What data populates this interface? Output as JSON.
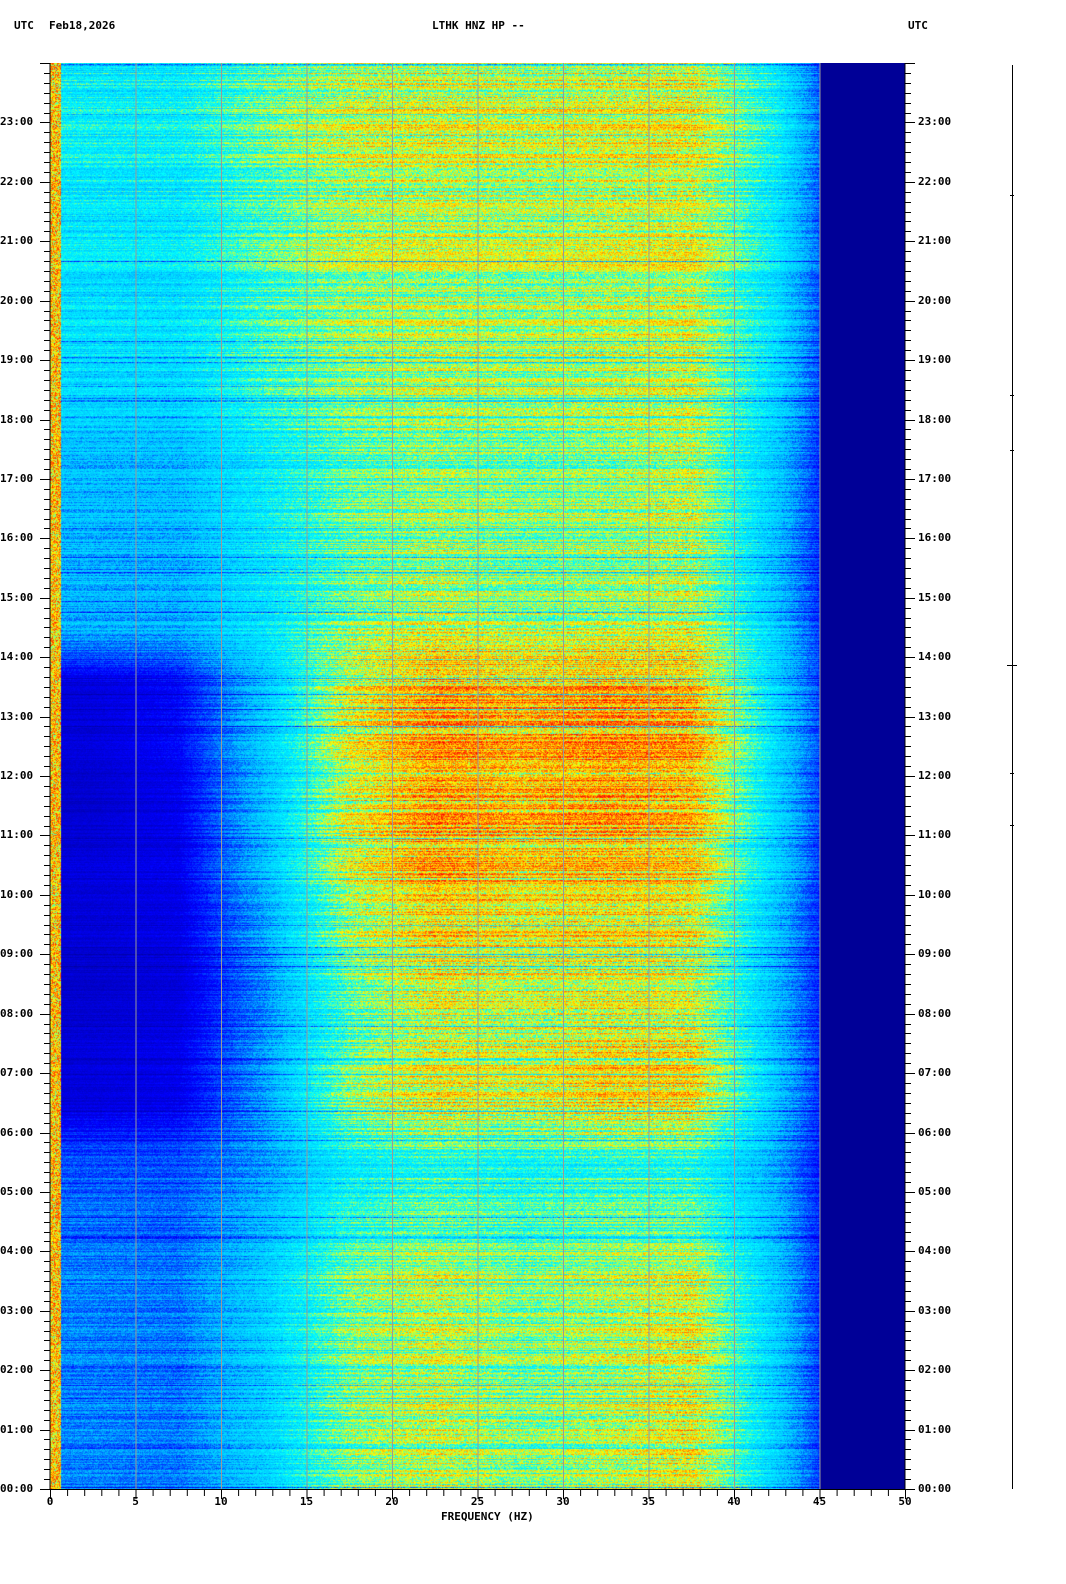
{
  "header": {
    "left_tz": "UTC",
    "date": "Feb18,2026",
    "station": "LTHK HNZ HP --",
    "right_tz": "UTC"
  },
  "chart_data": {
    "type": "heatmap",
    "title": "LTHK HNZ HP --",
    "xlabel": "FREQUENCY (HZ)",
    "ylabel": "",
    "xlim": [
      0,
      50
    ],
    "ylim_hours": [
      0,
      24
    ],
    "x_ticks": [
      "0",
      "5",
      "10",
      "15",
      "20",
      "25",
      "30",
      "35",
      "40",
      "45",
      "50"
    ],
    "y_ticks": [
      "00:00",
      "01:00",
      "02:00",
      "03:00",
      "04:00",
      "05:00",
      "06:00",
      "07:00",
      "08:00",
      "09:00",
      "10:00",
      "11:00",
      "12:00",
      "13:00",
      "14:00",
      "15:00",
      "16:00",
      "17:00",
      "18:00",
      "19:00",
      "20:00",
      "21:00",
      "22:00",
      "23:00"
    ],
    "grid": true,
    "colormap": [
      "#000080",
      "#0000ff",
      "#00c0ff",
      "#00ffff",
      "#ffff00",
      "#ff8000",
      "#ff0000"
    ],
    "frequency_bands_hz": [
      "0-5",
      "5-10",
      "10-15",
      "15-20",
      "20-25",
      "25-30",
      "30-35",
      "35-40",
      "40-45",
      "45-50"
    ],
    "relative_power_by_hour": [
      [
        0.28,
        0.27,
        0.38,
        0.58,
        0.64,
        0.58,
        0.62,
        0.68,
        0.38,
        0.05
      ],
      [
        0.28,
        0.27,
        0.38,
        0.58,
        0.64,
        0.58,
        0.62,
        0.68,
        0.38,
        0.05
      ],
      [
        0.28,
        0.27,
        0.38,
        0.58,
        0.64,
        0.58,
        0.62,
        0.68,
        0.38,
        0.05
      ],
      [
        0.28,
        0.27,
        0.38,
        0.58,
        0.64,
        0.58,
        0.62,
        0.66,
        0.36,
        0.05
      ],
      [
        0.26,
        0.25,
        0.34,
        0.5,
        0.55,
        0.52,
        0.55,
        0.55,
        0.34,
        0.05
      ],
      [
        0.24,
        0.24,
        0.3,
        0.45,
        0.5,
        0.48,
        0.5,
        0.5,
        0.32,
        0.05
      ],
      [
        0.12,
        0.14,
        0.3,
        0.6,
        0.7,
        0.66,
        0.72,
        0.72,
        0.36,
        0.05
      ],
      [
        0.12,
        0.14,
        0.3,
        0.55,
        0.66,
        0.64,
        0.7,
        0.7,
        0.36,
        0.05
      ],
      [
        0.1,
        0.12,
        0.28,
        0.55,
        0.68,
        0.64,
        0.66,
        0.64,
        0.34,
        0.05
      ],
      [
        0.12,
        0.14,
        0.32,
        0.62,
        0.74,
        0.7,
        0.72,
        0.7,
        0.36,
        0.05
      ],
      [
        0.12,
        0.14,
        0.34,
        0.64,
        0.78,
        0.72,
        0.74,
        0.72,
        0.38,
        0.05
      ],
      [
        0.1,
        0.14,
        0.34,
        0.64,
        0.78,
        0.74,
        0.78,
        0.74,
        0.38,
        0.05
      ],
      [
        0.12,
        0.16,
        0.36,
        0.66,
        0.8,
        0.76,
        0.8,
        0.78,
        0.4,
        0.05
      ],
      [
        0.12,
        0.16,
        0.36,
        0.66,
        0.8,
        0.76,
        0.8,
        0.76,
        0.4,
        0.05
      ],
      [
        0.34,
        0.34,
        0.44,
        0.6,
        0.66,
        0.62,
        0.64,
        0.66,
        0.38,
        0.05
      ],
      [
        0.34,
        0.34,
        0.44,
        0.56,
        0.62,
        0.58,
        0.6,
        0.64,
        0.36,
        0.05
      ],
      [
        0.34,
        0.34,
        0.44,
        0.56,
        0.6,
        0.58,
        0.6,
        0.64,
        0.36,
        0.05
      ],
      [
        0.36,
        0.36,
        0.46,
        0.56,
        0.6,
        0.58,
        0.6,
        0.64,
        0.38,
        0.05
      ],
      [
        0.4,
        0.4,
        0.5,
        0.58,
        0.62,
        0.6,
        0.62,
        0.64,
        0.4,
        0.05
      ],
      [
        0.42,
        0.42,
        0.52,
        0.6,
        0.62,
        0.6,
        0.62,
        0.64,
        0.42,
        0.05
      ],
      [
        0.42,
        0.42,
        0.52,
        0.6,
        0.62,
        0.6,
        0.62,
        0.64,
        0.42,
        0.05
      ],
      [
        0.44,
        0.44,
        0.54,
        0.62,
        0.64,
        0.62,
        0.64,
        0.66,
        0.44,
        0.05
      ],
      [
        0.46,
        0.46,
        0.56,
        0.64,
        0.66,
        0.64,
        0.66,
        0.68,
        0.46,
        0.05
      ],
      [
        0.46,
        0.46,
        0.56,
        0.64,
        0.66,
        0.64,
        0.66,
        0.68,
        0.46,
        0.05
      ]
    ]
  }
}
